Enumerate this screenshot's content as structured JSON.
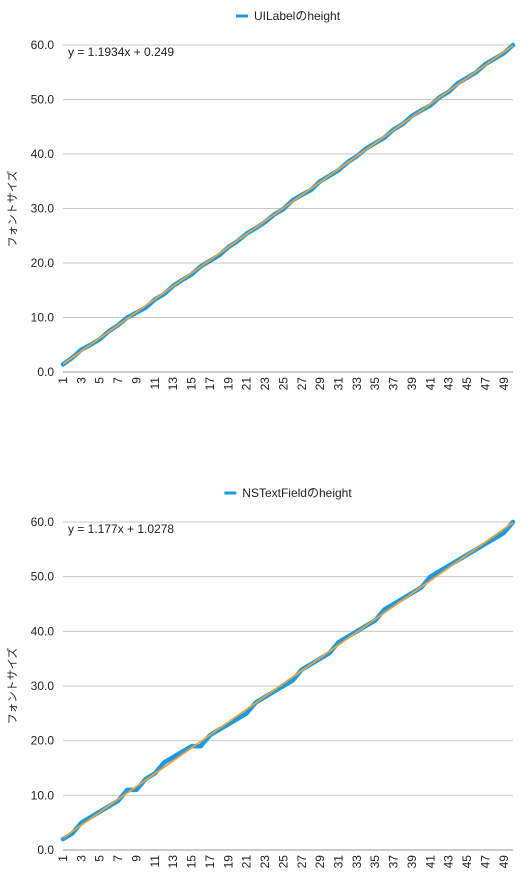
{
  "chart_data": [
    {
      "type": "line",
      "legend_position": "top-center",
      "ylabel": "フォントサイズ",
      "xlabel": "",
      "ylim": [
        0,
        60
      ],
      "yticks": [
        "0.0",
        "10.0",
        "20.0",
        "30.0",
        "40.0",
        "50.0",
        "60.0"
      ],
      "x": [
        1,
        2,
        3,
        4,
        5,
        6,
        7,
        8,
        9,
        10,
        11,
        12,
        13,
        14,
        15,
        16,
        17,
        18,
        19,
        20,
        21,
        22,
        23,
        24,
        25,
        26,
        27,
        28,
        29,
        30,
        31,
        32,
        33,
        34,
        35,
        36,
        37,
        38,
        39,
        40,
        41,
        42,
        43,
        44,
        45,
        46,
        47,
        48,
        49,
        50
      ],
      "xtick_labels": [
        "1",
        "3",
        "5",
        "7",
        "9",
        "11",
        "13",
        "15",
        "17",
        "19",
        "21",
        "23",
        "25",
        "27",
        "29",
        "31",
        "33",
        "35",
        "37",
        "39",
        "41",
        "43",
        "45",
        "47",
        "49"
      ],
      "grid": true,
      "series": [
        {
          "name": "UILabelのheight",
          "color": "#1a9be0",
          "values": [
            1.4,
            2.6,
            4.1,
            5.0,
            6.0,
            7.5,
            8.6,
            10.0,
            10.9,
            11.8,
            13.3,
            14.3,
            15.8,
            16.9,
            17.9,
            19.4,
            20.4,
            21.4,
            22.9,
            24.0,
            25.4,
            26.4,
            27.5,
            28.9,
            29.9,
            31.5,
            32.5,
            33.4,
            35.0,
            36.0,
            37.0,
            38.5,
            39.6,
            41.0,
            42.0,
            43.0,
            44.5,
            45.5,
            47.0,
            48.0,
            48.9,
            50.4,
            51.4,
            53.0,
            54.0,
            55.0,
            56.5,
            57.5,
            58.5,
            60.0
          ]
        }
      ],
      "trendline": {
        "equation": "y = 1.1934x + 0.249",
        "slope": 1.1934,
        "intercept": 0.249,
        "color": "#f0a040"
      }
    },
    {
      "type": "line",
      "legend_position": "top-center",
      "ylabel": "フォントサイズ",
      "xlabel": "",
      "ylim": [
        0,
        60
      ],
      "yticks": [
        "0.0",
        "10.0",
        "20.0",
        "30.0",
        "40.0",
        "50.0",
        "60.0"
      ],
      "x": [
        1,
        2,
        3,
        4,
        5,
        6,
        7,
        8,
        9,
        10,
        11,
        12,
        13,
        14,
        15,
        16,
        17,
        18,
        19,
        20,
        21,
        22,
        23,
        24,
        25,
        26,
        27,
        28,
        29,
        30,
        31,
        32,
        33,
        34,
        35,
        36,
        37,
        38,
        39,
        40,
        41,
        42,
        43,
        44,
        45,
        46,
        47,
        48,
        49,
        50
      ],
      "xtick_labels": [
        "1",
        "3",
        "5",
        "7",
        "9",
        "11",
        "13",
        "15",
        "17",
        "19",
        "21",
        "23",
        "25",
        "27",
        "29",
        "31",
        "33",
        "35",
        "37",
        "39",
        "41",
        "43",
        "45",
        "47",
        "49"
      ],
      "grid": true,
      "series": [
        {
          "name": "NSTextFieldのheight",
          "color": "#1a9be0",
          "values": [
            2.0,
            3.0,
            5.0,
            6.0,
            7.0,
            8.0,
            9.0,
            11.0,
            11.0,
            13.0,
            14.0,
            16.0,
            17.0,
            18.0,
            19.0,
            19.0,
            21.0,
            22.0,
            23.0,
            24.0,
            25.0,
            27.0,
            28.0,
            29.0,
            30.0,
            31.0,
            33.0,
            34.0,
            35.0,
            36.0,
            38.0,
            39.0,
            40.0,
            41.0,
            42.0,
            44.0,
            45.0,
            46.0,
            47.0,
            48.0,
            50.0,
            51.0,
            52.0,
            53.0,
            54.0,
            55.0,
            56.0,
            57.0,
            58.0,
            60.0
          ]
        }
      ],
      "trendline": {
        "equation": "y = 1.177x + 1.0278",
        "slope": 1.177,
        "intercept": 1.0278,
        "color": "#f0a040"
      }
    }
  ]
}
